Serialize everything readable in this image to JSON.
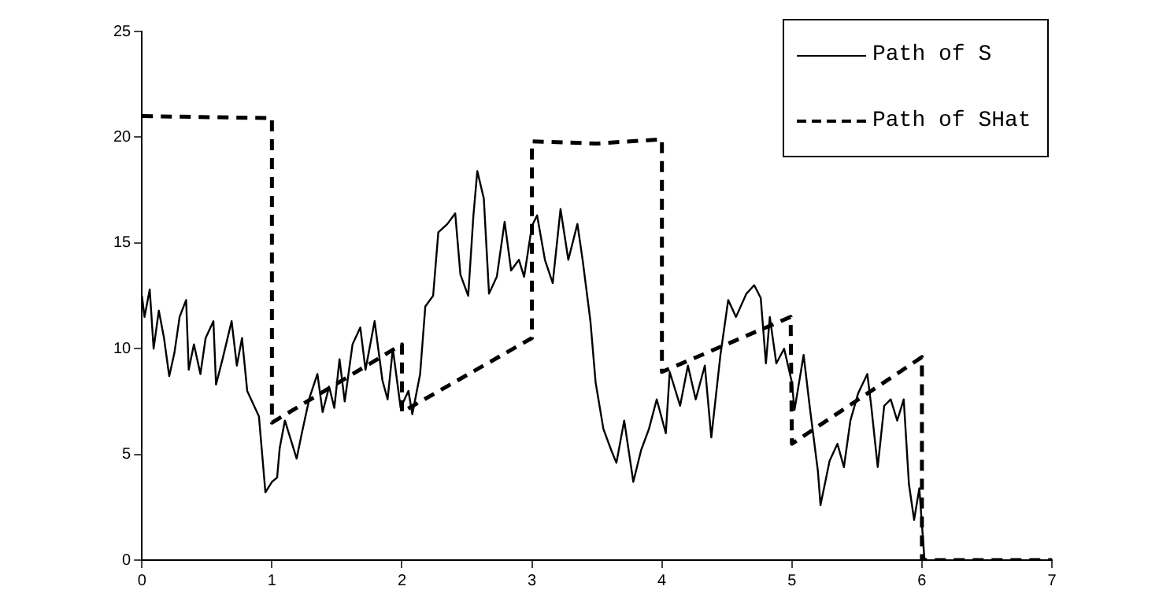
{
  "chart_data": {
    "type": "line",
    "xlim": [
      0,
      7
    ],
    "xticks": [
      0,
      1,
      2,
      3,
      4,
      5,
      6,
      7
    ],
    "ylim": [
      0,
      25
    ],
    "yticks": [
      0,
      5,
      10,
      15,
      20,
      25
    ],
    "grid": false,
    "legend": "top right",
    "marker": "none",
    "series": [
      {
        "name": "Path of S",
        "color": "#000000",
        "line_style": "solid",
        "x": [
          0,
          0.02,
          0.06,
          0.09,
          0.13,
          0.17,
          0.21,
          0.25,
          0.29,
          0.34,
          0.36,
          0.4,
          0.45,
          0.49,
          0.55,
          0.57,
          0.62,
          0.69,
          0.73,
          0.77,
          0.81,
          0.9,
          0.95,
          1.0,
          1.04,
          1.06,
          1.1,
          1.14,
          1.19,
          1.23,
          1.29,
          1.35,
          1.39,
          1.44,
          1.48,
          1.52,
          1.56,
          1.62,
          1.68,
          1.72,
          1.79,
          1.85,
          1.89,
          1.93,
          1.99,
          2.05,
          2.08,
          2.14,
          2.18,
          2.24,
          2.28,
          2.35,
          2.41,
          2.45,
          2.51,
          2.55,
          2.58,
          2.63,
          2.67,
          2.73,
          2.79,
          2.84,
          2.9,
          2.94,
          3.0,
          3.04,
          3.1,
          3.16,
          3.22,
          3.28,
          3.35,
          3.39,
          3.45,
          3.49,
          3.55,
          3.61,
          3.65,
          3.71,
          3.78,
          3.84,
          3.9,
          3.96,
          4.03,
          4.06,
          4.14,
          4.2,
          4.26,
          4.33,
          4.38,
          4.45,
          4.51,
          4.57,
          4.65,
          4.71,
          4.76,
          4.8,
          4.83,
          4.88,
          4.94,
          5.0,
          5.02,
          5.09,
          5.14,
          5.2,
          5.22,
          5.29,
          5.35,
          5.4,
          5.45,
          5.51,
          5.58,
          5.61,
          5.66,
          5.71,
          5.76,
          5.81,
          5.86,
          5.9,
          5.94,
          5.98,
          6.02
        ],
        "values": [
          12.5,
          11.5,
          12.8,
          10.0,
          11.8,
          10.5,
          8.7,
          9.8,
          11.5,
          12.3,
          9.0,
          10.2,
          8.8,
          10.5,
          11.3,
          8.3,
          9.5,
          11.3,
          9.2,
          10.5,
          8.0,
          6.8,
          3.2,
          3.7,
          3.9,
          5.3,
          6.6,
          5.8,
          4.8,
          6.0,
          7.7,
          8.8,
          7.0,
          8.2,
          7.2,
          9.5,
          7.5,
          10.2,
          11.0,
          9.0,
          11.3,
          8.5,
          7.6,
          10.0,
          7.2,
          8.0,
          6.9,
          8.8,
          12.0,
          12.5,
          15.5,
          15.9,
          16.4,
          13.5,
          12.5,
          16.3,
          18.4,
          17.1,
          12.6,
          13.4,
          16.0,
          13.7,
          14.2,
          13.4,
          15.8,
          16.3,
          14.2,
          13.1,
          16.6,
          14.2,
          15.9,
          14.2,
          11.3,
          8.4,
          6.2,
          5.2,
          4.6,
          6.6,
          3.7,
          5.2,
          6.2,
          7.6,
          6.0,
          8.9,
          7.3,
          9.2,
          7.6,
          9.2,
          5.8,
          9.7,
          12.3,
          11.5,
          12.6,
          13.0,
          12.4,
          9.3,
          11.5,
          9.3,
          10.0,
          8.4,
          7.1,
          9.7,
          7.1,
          4.2,
          2.6,
          4.7,
          5.5,
          4.4,
          6.6,
          7.9,
          8.8,
          7.3,
          4.4,
          7.3,
          7.6,
          6.6,
          7.6,
          3.6,
          1.9,
          3.4,
          0
        ]
      },
      {
        "name": "Path of SHat",
        "color": "#000000",
        "line_style": "dashed",
        "x": [
          0,
          1,
          1,
          2,
          2,
          3,
          3,
          3.5,
          4,
          4,
          4.99,
          5,
          6,
          6,
          7
        ],
        "values": [
          21,
          20.9,
          6.5,
          10.2,
          7.0,
          10.5,
          19.8,
          19.7,
          19.9,
          8.9,
          11.5,
          5.5,
          9.6,
          0,
          0
        ]
      }
    ]
  }
}
